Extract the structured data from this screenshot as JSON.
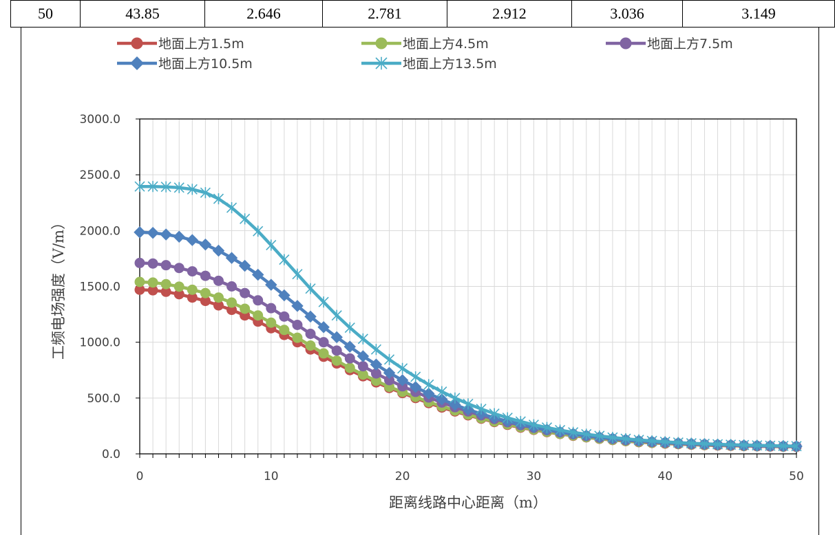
{
  "table_row": [
    "50",
    "43.85",
    "2.646",
    "2.781",
    "2.912",
    "3.036",
    "3.149"
  ],
  "chart_data": {
    "type": "line",
    "title": "",
    "xlabel": "距离线路中心距离（m）",
    "ylabel": "工频电场强度（V/m）",
    "xlim": [
      0,
      50
    ],
    "ylim": [
      0,
      3000
    ],
    "x_ticks": [
      "0",
      "10",
      "20",
      "30",
      "40",
      "50"
    ],
    "y_ticks": [
      "0.0",
      "500.0",
      "1000.0",
      "1500.0",
      "2000.0",
      "2500.0",
      "3000.0"
    ],
    "grid": "vertical-minor",
    "legend_position": "top",
    "x": [
      0,
      1,
      2,
      3,
      4,
      5,
      6,
      7,
      8,
      9,
      10,
      11,
      12,
      13,
      14,
      15,
      16,
      17,
      18,
      19,
      20,
      21,
      22,
      23,
      24,
      25,
      26,
      27,
      28,
      29,
      30,
      31,
      32,
      33,
      34,
      35,
      36,
      37,
      38,
      39,
      40,
      41,
      42,
      43,
      44,
      45,
      46,
      47,
      48,
      49,
      50
    ],
    "series": [
      {
        "name": "地面上方1.5m",
        "color": "#C0504D",
        "marker": "circle",
        "values": [
          1470,
          1465,
          1452,
          1430,
          1400,
          1370,
          1330,
          1290,
          1240,
          1185,
          1125,
          1065,
          1000,
          935,
          870,
          810,
          750,
          695,
          640,
          590,
          545,
          500,
          455,
          415,
          380,
          345,
          315,
          285,
          260,
          235,
          215,
          195,
          178,
          162,
          148,
          135,
          124,
          114,
          105,
          98,
          92,
          87,
          82,
          78,
          75,
          72,
          70,
          68,
          66,
          64,
          63
        ]
      },
      {
        "name": "地面上方4.5m",
        "color": "#9BBB59",
        "marker": "circle",
        "values": [
          1540,
          1535,
          1520,
          1498,
          1470,
          1440,
          1400,
          1355,
          1300,
          1240,
          1175,
          1110,
          1040,
          970,
          900,
          835,
          770,
          710,
          655,
          600,
          555,
          510,
          465,
          425,
          388,
          352,
          320,
          290,
          265,
          240,
          218,
          198,
          180,
          165,
          150,
          137,
          126,
          116,
          107,
          100,
          94,
          89,
          84,
          80,
          77,
          74,
          71,
          69,
          67,
          65,
          64
        ]
      },
      {
        "name": "地面上方7.5m",
        "color": "#8064A2",
        "marker": "circle",
        "values": [
          1710,
          1705,
          1690,
          1665,
          1635,
          1595,
          1550,
          1500,
          1440,
          1375,
          1305,
          1230,
          1155,
          1075,
          1000,
          925,
          855,
          785,
          720,
          660,
          605,
          555,
          505,
          460,
          418,
          380,
          345,
          312,
          283,
          257,
          233,
          212,
          193,
          176,
          160,
          146,
          134,
          123,
          114,
          106,
          99,
          93,
          88,
          84,
          80,
          77,
          74,
          71,
          69,
          67,
          66
        ]
      },
      {
        "name": "地面上方10.5m",
        "color": "#4F81BD",
        "marker": "diamond",
        "values": [
          1985,
          1980,
          1965,
          1945,
          1915,
          1875,
          1820,
          1755,
          1685,
          1605,
          1515,
          1420,
          1325,
          1230,
          1135,
          1045,
          960,
          875,
          800,
          725,
          660,
          598,
          540,
          488,
          440,
          397,
          358,
          323,
          292,
          264,
          239,
          217,
          197,
          180,
          164,
          150,
          138,
          127,
          118,
          110,
          103,
          97,
          92,
          87,
          83,
          80,
          77,
          74,
          72,
          70,
          68
        ]
      },
      {
        "name": "地面上方13.5m",
        "color": "#4BACC6",
        "marker": "star",
        "values": [
          2395,
          2395,
          2392,
          2385,
          2370,
          2340,
          2285,
          2205,
          2105,
          1995,
          1870,
          1740,
          1610,
          1480,
          1360,
          1240,
          1130,
          1030,
          935,
          845,
          765,
          690,
          620,
          557,
          500,
          448,
          402,
          360,
          323,
          290,
          261,
          236,
          213,
          193,
          176,
          161,
          147,
          135,
          125,
          116,
          108,
          101,
          95,
          90,
          86,
          82,
          79,
          76,
          73,
          71,
          69
        ]
      }
    ]
  }
}
